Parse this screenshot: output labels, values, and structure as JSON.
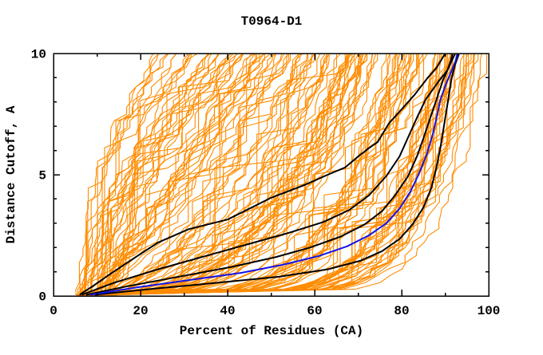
{
  "chart_data": {
    "type": "line",
    "title": "T0964-D1",
    "xlabel": "Percent of Residues (CA)",
    "ylabel": "Distance Cutoff, A",
    "xlim": [
      0,
      100
    ],
    "ylim": [
      0,
      10
    ],
    "grid": false,
    "legend": "none",
    "x_major_ticks": [
      0,
      20,
      40,
      60,
      80,
      100
    ],
    "x_minor_ticks": [
      10,
      30,
      50,
      70,
      90
    ],
    "y_major_ticks": [
      0,
      5,
      10
    ],
    "y_minor_ticks": [
      1,
      2,
      3,
      4,
      6,
      7,
      8,
      9
    ],
    "tick_style": "inward-mirrored",
    "colors": {
      "ensemble": "#FF8C00",
      "highlight": "#000000",
      "reference": "#1414E6",
      "axis": "#000000",
      "background": "#FFFFFF"
    },
    "series": [
      {
        "name": "highlight-model-1",
        "color": "#000000",
        "width": 2,
        "points": [
          [
            6,
            0.05
          ],
          [
            9,
            0.4
          ],
          [
            13,
            0.9
          ],
          [
            18,
            1.5
          ],
          [
            24,
            2.2
          ],
          [
            31,
            2.75
          ],
          [
            40,
            3.15
          ],
          [
            50,
            4.05
          ],
          [
            58,
            4.6
          ],
          [
            63,
            5.0
          ],
          [
            67,
            5.3
          ],
          [
            70,
            5.75
          ],
          [
            72.5,
            6.1
          ],
          [
            74.5,
            6.35
          ],
          [
            77,
            7.1
          ],
          [
            80,
            7.7
          ],
          [
            83,
            8.3
          ],
          [
            86,
            9.0
          ],
          [
            88,
            9.4
          ],
          [
            89,
            9.7
          ],
          [
            90,
            10
          ]
        ]
      },
      {
        "name": "highlight-model-2",
        "color": "#000000",
        "width": 2,
        "points": [
          [
            6.5,
            0.05
          ],
          [
            14,
            0.55
          ],
          [
            24,
            1.1
          ],
          [
            35,
            1.65
          ],
          [
            45,
            2.15
          ],
          [
            54,
            2.6
          ],
          [
            62,
            3.05
          ],
          [
            68,
            3.55
          ],
          [
            72.5,
            4.15
          ],
          [
            76.5,
            4.95
          ],
          [
            79.5,
            5.75
          ],
          [
            81.5,
            6.55
          ],
          [
            83.5,
            7.35
          ],
          [
            85.5,
            8.1
          ],
          [
            87.5,
            8.6
          ],
          [
            88.5,
            8.85
          ],
          [
            90.5,
            9.3
          ],
          [
            91.3,
            9.7
          ],
          [
            91.7,
            10
          ]
        ]
      },
      {
        "name": "highlight-model-3",
        "color": "#000000",
        "width": 2,
        "points": [
          [
            7.5,
            0.05
          ],
          [
            17,
            0.4
          ],
          [
            29,
            0.8
          ],
          [
            41,
            1.2
          ],
          [
            51,
            1.6
          ],
          [
            59,
            2.0
          ],
          [
            66,
            2.45
          ],
          [
            71.5,
            2.95
          ],
          [
            75.5,
            3.5
          ],
          [
            78.5,
            4.15
          ],
          [
            81.5,
            4.95
          ],
          [
            83.5,
            5.75
          ],
          [
            85,
            6.5
          ],
          [
            86.5,
            7.3
          ],
          [
            88,
            8.1
          ],
          [
            89.5,
            8.9
          ],
          [
            91,
            9.5
          ],
          [
            92.3,
            10
          ]
        ]
      },
      {
        "name": "highlight-model-4",
        "color": "#000000",
        "width": 2,
        "points": [
          [
            9.5,
            0.05
          ],
          [
            23,
            0.3
          ],
          [
            38,
            0.55
          ],
          [
            52,
            0.8
          ],
          [
            63,
            1.1
          ],
          [
            70.5,
            1.45
          ],
          [
            75.5,
            1.85
          ],
          [
            79.5,
            2.35
          ],
          [
            82.5,
            2.95
          ],
          [
            85,
            3.65
          ],
          [
            86.8,
            4.45
          ],
          [
            88,
            5.3
          ],
          [
            89,
            6.2
          ],
          [
            89.8,
            7.1
          ],
          [
            90.6,
            8.0
          ],
          [
            91.4,
            8.9
          ],
          [
            92.2,
            9.5
          ],
          [
            93.2,
            10
          ]
        ]
      },
      {
        "name": "reference-model-blue",
        "color": "#1414E6",
        "width": 2,
        "points": [
          [
            8.5,
            0.05
          ],
          [
            19,
            0.35
          ],
          [
            31,
            0.65
          ],
          [
            43,
            0.95
          ],
          [
            53,
            1.3
          ],
          [
            61,
            1.65
          ],
          [
            67.5,
            2.05
          ],
          [
            72.5,
            2.5
          ],
          [
            76.5,
            3.0
          ],
          [
            79.5,
            3.6
          ],
          [
            82,
            4.3
          ],
          [
            84,
            5.05
          ],
          [
            85.8,
            5.85
          ],
          [
            87.2,
            6.7
          ],
          [
            88.2,
            7.5
          ],
          [
            88.9,
            8.1
          ],
          [
            90.2,
            8.75
          ],
          [
            91.5,
            9.3
          ],
          [
            92.4,
            9.7
          ],
          [
            92.8,
            10
          ]
        ]
      }
    ],
    "ensemble": {
      "name": "all-model-curves",
      "color": "#FF8C00",
      "width": 1.1,
      "line_count": 150,
      "seed": 964,
      "start_x_range": [
        5,
        13
      ],
      "top_x_range": [
        20,
        100
      ],
      "steps": 36,
      "jitter": 3
    }
  }
}
